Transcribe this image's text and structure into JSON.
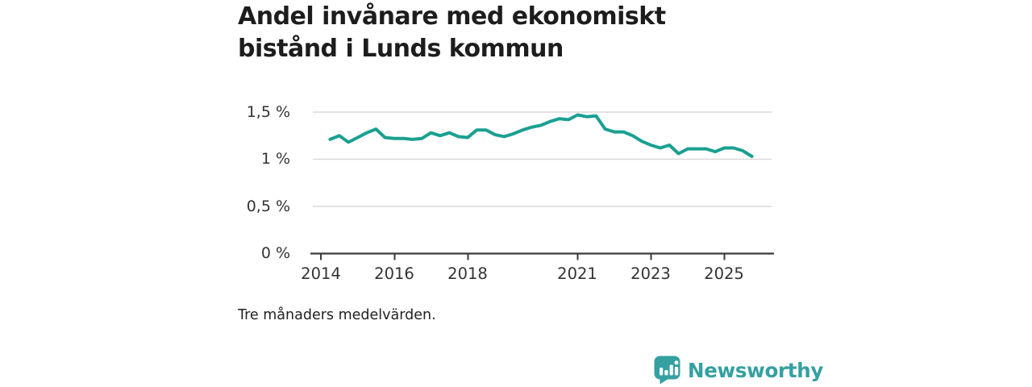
{
  "title": "Andel invånare med ekonomiskt bistånd i Lunds kommun",
  "footnote": "Tre månaders medelvärden.",
  "logo": {
    "text": "Newsworthy",
    "icon": "newsworthy-speech-bubble-bar-chart-icon"
  },
  "colors": {
    "line": "#1aa091",
    "brand": "#35a0a0",
    "grid": "#d9d9d9",
    "axis": "#3a3a3a",
    "title_text": "#1d1d1d",
    "axis_label": "#333333"
  },
  "chart_data": {
    "type": "line",
    "title": "Andel invånare med ekonomiskt bistånd i Lunds kommun",
    "series_name": "Andel invånare med ekonomiskt bistånd",
    "unit": "%",
    "x_start": 2014.25,
    "x_step": 0.25,
    "x_end": 2025.75,
    "values": [
      1.21,
      1.25,
      1.18,
      1.23,
      1.28,
      1.32,
      1.23,
      1.22,
      1.22,
      1.21,
      1.22,
      1.28,
      1.25,
      1.28,
      1.24,
      1.23,
      1.31,
      1.31,
      1.26,
      1.24,
      1.27,
      1.31,
      1.34,
      1.36,
      1.4,
      1.43,
      1.42,
      1.47,
      1.45,
      1.46,
      1.32,
      1.29,
      1.29,
      1.25,
      1.19,
      1.15,
      1.12,
      1.15,
      1.06,
      1.11,
      1.11,
      1.11,
      1.08,
      1.12,
      1.12,
      1.09,
      1.03
    ],
    "ylim": [
      0,
      1.5
    ],
    "xlim": [
      2013.7,
      2026.3
    ],
    "grid": "horizontal",
    "legend": "none",
    "yticks": [
      {
        "value": 0,
        "label": "0 %"
      },
      {
        "value": 0.5,
        "label": "0,5 %"
      },
      {
        "value": 1,
        "label": "1 %"
      },
      {
        "value": 1.5,
        "label": "1,5 %"
      }
    ],
    "xticks": [
      {
        "value": 2014,
        "label": "2014"
      },
      {
        "value": 2016,
        "label": "2016"
      },
      {
        "value": 2018,
        "label": "2018"
      },
      {
        "value": 2021,
        "label": "2021"
      },
      {
        "value": 2023,
        "label": "2023"
      },
      {
        "value": 2025,
        "label": "2025"
      }
    ]
  }
}
